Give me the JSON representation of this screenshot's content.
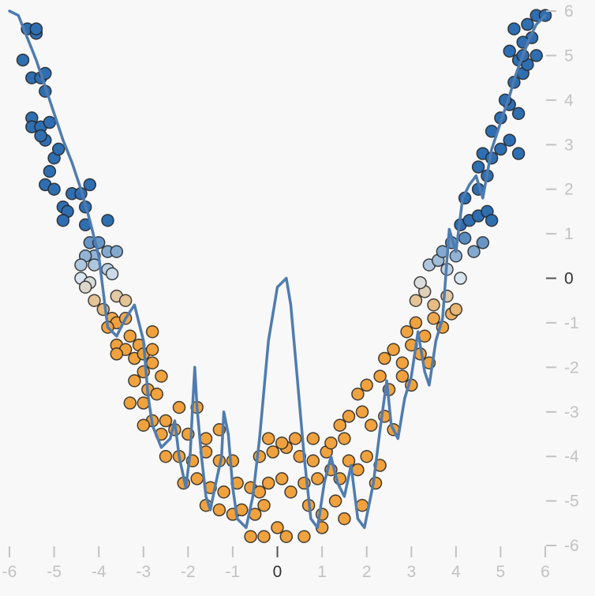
{
  "chart_data": {
    "type": "scatter",
    "title": "",
    "xlabel": "",
    "ylabel": "",
    "xlim": [
      -6,
      6
    ],
    "ylim": [
      -6,
      6
    ],
    "x_ticks": [
      "-6",
      "-5",
      "-4",
      "-3",
      "-2",
      "-1",
      "0",
      "1",
      "2",
      "3",
      "4",
      "5",
      "6"
    ],
    "y_ticks": [
      "6",
      "5",
      "4",
      "3",
      "2",
      "1",
      "0",
      "-1",
      "-2",
      "-3",
      "-4",
      "-5",
      "-6"
    ],
    "grid": false,
    "legend": "none",
    "colors": {
      "positive": "#2f6eb0",
      "neutral": "#d8e4ee",
      "negative": "#f0a23e",
      "fit_line": "#4f7cb0",
      "tick_muted": "#c2c2c2",
      "tick_zero": "#555555"
    },
    "series": [
      {
        "type": "scatter",
        "note_color_scale": "blue = high, orange = low",
        "points": [
          [
            -5.6,
            5.6
          ],
          [
            -5.4,
            5.5
          ],
          [
            -5.4,
            5.6
          ],
          [
            -5.7,
            4.9
          ],
          [
            -5.5,
            4.5
          ],
          [
            -5.3,
            4.5
          ],
          [
            -5.2,
            4.6
          ],
          [
            -5.2,
            4.2
          ],
          [
            -5.5,
            3.6
          ],
          [
            -5.5,
            3.4
          ],
          [
            -5.3,
            3.4
          ],
          [
            -5.1,
            3.5
          ],
          [
            -5.2,
            3.1
          ],
          [
            -5.3,
            3.2
          ],
          [
            -5.0,
            2.7
          ],
          [
            -4.9,
            2.9
          ],
          [
            -5.1,
            2.4
          ],
          [
            -5.2,
            2.1
          ],
          [
            -5.0,
            2.0
          ],
          [
            -4.8,
            1.6
          ],
          [
            -4.6,
            1.9
          ],
          [
            -4.7,
            1.5
          ],
          [
            -4.8,
            1.3
          ],
          [
            -4.4,
            1.9
          ],
          [
            -4.2,
            2.1
          ],
          [
            -4.3,
            1.6
          ],
          [
            -4.3,
            1.2
          ],
          [
            -3.8,
            1.3
          ],
          [
            -4.2,
            0.8
          ],
          [
            -4.0,
            0.8
          ],
          [
            -4.1,
            0.5
          ],
          [
            -3.8,
            0.6
          ],
          [
            -3.6,
            0.6
          ],
          [
            -4.3,
            0.5
          ],
          [
            -4.4,
            0.3
          ],
          [
            -4.1,
            0.3
          ],
          [
            -3.8,
            0.2
          ],
          [
            -4.4,
            0.0
          ],
          [
            -4.2,
            -0.1
          ],
          [
            -3.7,
            0.1
          ],
          [
            -4.3,
            -0.2
          ],
          [
            -4.1,
            -0.5
          ],
          [
            -3.6,
            -0.4
          ],
          [
            -3.4,
            -0.5
          ],
          [
            -3.9,
            -0.7
          ],
          [
            -3.7,
            -0.9
          ],
          [
            -3.6,
            -1.0
          ],
          [
            -3.4,
            -0.9
          ],
          [
            -3.8,
            -1.1
          ],
          [
            -3.3,
            -1.3
          ],
          [
            -3.1,
            -1.5
          ],
          [
            -2.8,
            -1.2
          ],
          [
            -3.6,
            -1.5
          ],
          [
            -3.4,
            -1.6
          ],
          [
            -3.2,
            -1.8
          ],
          [
            -3.0,
            -1.7
          ],
          [
            -2.8,
            -1.6
          ],
          [
            -3.6,
            -1.7
          ],
          [
            -3.2,
            -2.3
          ],
          [
            -3.0,
            -2.1
          ],
          [
            -2.9,
            -2.5
          ],
          [
            -2.6,
            -2.2
          ],
          [
            -2.7,
            -2.6
          ],
          [
            -2.8,
            -1.9
          ],
          [
            -3.3,
            -2.8
          ],
          [
            -3.0,
            -2.8
          ],
          [
            -2.8,
            -3.2
          ],
          [
            -2.5,
            -3.2
          ],
          [
            -2.2,
            -2.9
          ],
          [
            -1.8,
            -2.9
          ],
          [
            -3.0,
            -3.3
          ],
          [
            -2.6,
            -3.5
          ],
          [
            -2.3,
            -3.4
          ],
          [
            -2.0,
            -3.5
          ],
          [
            -1.6,
            -3.6
          ],
          [
            -1.3,
            -3.4
          ],
          [
            -2.5,
            -4.0
          ],
          [
            -2.2,
            -4.0
          ],
          [
            -1.9,
            -4.1
          ],
          [
            -1.6,
            -3.9
          ],
          [
            -1.3,
            -4.1
          ],
          [
            -1.0,
            -4.1
          ],
          [
            -2.1,
            -4.6
          ],
          [
            -1.8,
            -4.5
          ],
          [
            -1.5,
            -4.7
          ],
          [
            -1.2,
            -4.8
          ],
          [
            -0.9,
            -4.6
          ],
          [
            -0.6,
            -4.7
          ],
          [
            -1.6,
            -5.1
          ],
          [
            -1.3,
            -5.2
          ],
          [
            -1.0,
            -5.3
          ],
          [
            -0.8,
            -5.2
          ],
          [
            -0.5,
            -5.3
          ],
          [
            -0.3,
            -5.1
          ],
          [
            -0.6,
            -5.8
          ],
          [
            -0.3,
            -5.8
          ],
          [
            0.0,
            -5.6
          ],
          [
            0.2,
            -5.8
          ],
          [
            0.6,
            -5.8
          ],
          [
            1.0,
            -5.6
          ],
          [
            -0.4,
            -4.8
          ],
          [
            -0.2,
            -4.6
          ],
          [
            0.1,
            -4.5
          ],
          [
            0.3,
            -4.8
          ],
          [
            0.6,
            -4.6
          ],
          [
            0.9,
            -4.5
          ],
          [
            -0.4,
            -4.0
          ],
          [
            -0.1,
            -3.9
          ],
          [
            0.2,
            -3.8
          ],
          [
            0.5,
            -4.0
          ],
          [
            0.8,
            -4.1
          ],
          [
            1.1,
            -3.9
          ],
          [
            -0.2,
            -3.6
          ],
          [
            0.1,
            -3.7
          ],
          [
            0.4,
            -3.6
          ],
          [
            0.8,
            -3.6
          ],
          [
            1.2,
            -3.7
          ],
          [
            1.5,
            -3.6
          ],
          [
            0.7,
            -5.1
          ],
          [
            1.0,
            -5.3
          ],
          [
            1.3,
            -5.0
          ],
          [
            1.5,
            -5.4
          ],
          [
            1.9,
            -5.1
          ],
          [
            2.2,
            -4.6
          ],
          [
            1.2,
            -4.3
          ],
          [
            1.4,
            -4.5
          ],
          [
            1.6,
            -4.1
          ],
          [
            1.8,
            -4.3
          ],
          [
            2.0,
            -4.0
          ],
          [
            2.3,
            -4.2
          ],
          [
            1.4,
            -3.3
          ],
          [
            1.6,
            -3.1
          ],
          [
            1.9,
            -3.0
          ],
          [
            2.1,
            -3.3
          ],
          [
            2.4,
            -3.1
          ],
          [
            2.6,
            -3.4
          ],
          [
            1.8,
            -2.6
          ],
          [
            2.0,
            -2.4
          ],
          [
            2.3,
            -2.2
          ],
          [
            2.5,
            -2.5
          ],
          [
            2.8,
            -2.2
          ],
          [
            3.0,
            -2.4
          ],
          [
            2.4,
            -1.8
          ],
          [
            2.6,
            -1.6
          ],
          [
            2.8,
            -1.9
          ],
          [
            3.0,
            -1.5
          ],
          [
            3.2,
            -1.7
          ],
          [
            3.4,
            -1.9
          ],
          [
            2.9,
            -1.2
          ],
          [
            3.1,
            -1.0
          ],
          [
            3.3,
            -1.3
          ],
          [
            3.5,
            -0.9
          ],
          [
            3.7,
            -1.1
          ],
          [
            3.9,
            -0.8
          ],
          [
            3.1,
            -0.5
          ],
          [
            3.3,
            -0.3
          ],
          [
            3.5,
            -0.6
          ],
          [
            3.8,
            -0.4
          ],
          [
            4.0,
            -0.7
          ],
          [
            3.2,
            -0.1
          ],
          [
            3.4,
            0.3
          ],
          [
            3.6,
            0.4
          ],
          [
            3.8,
            0.2
          ],
          [
            4.1,
            0.0
          ],
          [
            3.7,
            0.6
          ],
          [
            4.0,
            0.5
          ],
          [
            3.9,
            0.8
          ],
          [
            4.2,
            0.9
          ],
          [
            4.4,
            0.6
          ],
          [
            4.6,
            0.8
          ],
          [
            4.1,
            1.2
          ],
          [
            4.3,
            1.3
          ],
          [
            4.5,
            1.4
          ],
          [
            4.7,
            1.5
          ],
          [
            4.8,
            1.3
          ],
          [
            4.2,
            1.8
          ],
          [
            4.5,
            2.0
          ],
          [
            4.7,
            2.3
          ],
          [
            4.5,
            2.5
          ],
          [
            4.6,
            2.8
          ],
          [
            4.8,
            2.7
          ],
          [
            5.0,
            2.9
          ],
          [
            5.2,
            3.1
          ],
          [
            5.4,
            2.8
          ],
          [
            4.8,
            3.3
          ],
          [
            5.0,
            3.6
          ],
          [
            5.2,
            3.9
          ],
          [
            5.4,
            3.7
          ],
          [
            5.1,
            4.0
          ],
          [
            5.3,
            4.4
          ],
          [
            5.5,
            4.6
          ],
          [
            5.4,
            4.9
          ],
          [
            5.6,
            4.8
          ],
          [
            5.2,
            5.1
          ],
          [
            5.5,
            5.0
          ],
          [
            5.7,
            5.4
          ],
          [
            5.6,
            5.7
          ],
          [
            5.8,
            5.9
          ],
          [
            6.0,
            5.9
          ],
          [
            5.8,
            5.0
          ],
          [
            5.5,
            5.3
          ],
          [
            5.3,
            5.6
          ]
        ]
      },
      {
        "type": "line",
        "points": [
          [
            -6.0,
            6.0
          ],
          [
            -5.8,
            5.9
          ],
          [
            -5.6,
            5.4
          ],
          [
            -5.4,
            4.9
          ],
          [
            -5.2,
            4.3
          ],
          [
            -5.0,
            3.7
          ],
          [
            -4.8,
            3.1
          ],
          [
            -4.6,
            2.6
          ],
          [
            -4.4,
            2.0
          ],
          [
            -4.2,
            1.3
          ],
          [
            -4.0,
            0.5
          ],
          [
            -3.9,
            -0.3
          ],
          [
            -3.8,
            -1.1
          ],
          [
            -3.6,
            -1.3
          ],
          [
            -3.4,
            -0.9
          ],
          [
            -3.2,
            -0.6
          ],
          [
            -3.0,
            -1.4
          ],
          [
            -2.9,
            -2.6
          ],
          [
            -2.8,
            -3.3
          ],
          [
            -2.6,
            -3.8
          ],
          [
            -2.4,
            -3.6
          ],
          [
            -2.3,
            -3.2
          ],
          [
            -2.2,
            -4.0
          ],
          [
            -2.05,
            -4.7
          ],
          [
            -1.95,
            -3.9
          ],
          [
            -1.9,
            -2.9
          ],
          [
            -1.85,
            -2.0
          ],
          [
            -1.8,
            -2.9
          ],
          [
            -1.7,
            -4.0
          ],
          [
            -1.6,
            -4.9
          ],
          [
            -1.5,
            -5.2
          ],
          [
            -1.4,
            -4.7
          ],
          [
            -1.25,
            -4.0
          ],
          [
            -1.2,
            -3.0
          ],
          [
            -1.1,
            -3.5
          ],
          [
            -1.0,
            -4.7
          ],
          [
            -0.9,
            -5.4
          ],
          [
            -0.7,
            -5.6
          ],
          [
            -0.55,
            -4.9
          ],
          [
            -0.4,
            -3.6
          ],
          [
            -0.2,
            -1.4
          ],
          [
            0.0,
            -0.2
          ],
          [
            0.2,
            0.0
          ],
          [
            0.3,
            -0.6
          ],
          [
            0.45,
            -2.3
          ],
          [
            0.6,
            -4.0
          ],
          [
            0.75,
            -5.4
          ],
          [
            0.9,
            -5.6
          ],
          [
            1.05,
            -4.6
          ],
          [
            1.2,
            -4.0
          ],
          [
            1.35,
            -4.6
          ],
          [
            1.5,
            -4.9
          ],
          [
            1.65,
            -4.2
          ],
          [
            1.8,
            -5.4
          ],
          [
            1.95,
            -5.6
          ],
          [
            2.15,
            -4.6
          ],
          [
            2.3,
            -3.4
          ],
          [
            2.45,
            -2.3
          ],
          [
            2.55,
            -3.3
          ],
          [
            2.7,
            -3.6
          ],
          [
            2.85,
            -2.7
          ],
          [
            3.0,
            -2.2
          ],
          [
            3.15,
            -1.2
          ],
          [
            3.3,
            -2.1
          ],
          [
            3.4,
            -2.4
          ],
          [
            3.55,
            -1.4
          ],
          [
            3.7,
            -0.9
          ],
          [
            3.85,
            1.1
          ],
          [
            4.0,
            0.6
          ],
          [
            4.15,
            1.8
          ],
          [
            4.3,
            2.1
          ],
          [
            4.45,
            2.3
          ],
          [
            4.6,
            1.8
          ],
          [
            4.8,
            2.9
          ],
          [
            5.0,
            3.5
          ],
          [
            5.2,
            4.1
          ],
          [
            5.35,
            4.6
          ],
          [
            5.5,
            5.0
          ],
          [
            5.65,
            5.4
          ],
          [
            5.8,
            5.7
          ],
          [
            6.0,
            5.9
          ]
        ]
      }
    ]
  }
}
